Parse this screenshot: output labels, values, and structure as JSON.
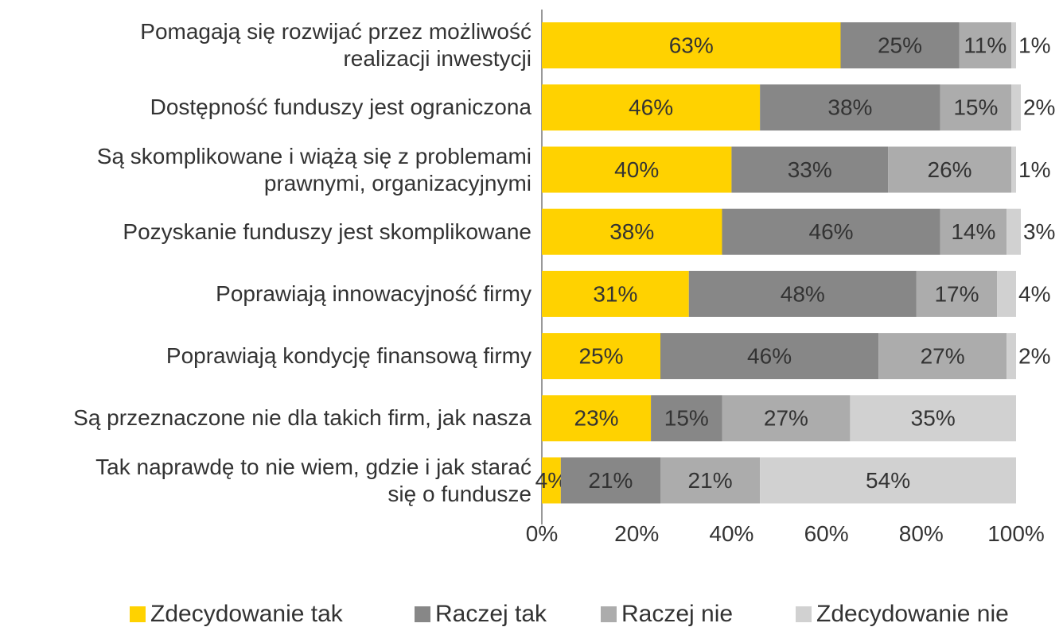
{
  "chart_data": {
    "type": "bar",
    "orientation": "horizontal",
    "stacked": true,
    "categories": [
      "Pomagają się rozwijać przez możliwość\nrealizacji inwestycji",
      "Dostępność funduszy jest ograniczona",
      "Są skomplikowane i wiążą się z problemami\nprawnymi, organizacyjnymi",
      "Pozyskanie funduszy jest skomplikowane",
      "Poprawiają innowacyjność firmy",
      "Poprawiają kondycję finansową firmy",
      "Są przeznaczone nie dla takich firm, jak nasza",
      "Tak naprawdę to nie wiem, gdzie i jak starać\nsię o fundusze"
    ],
    "series": [
      {
        "name": "Zdecydowanie tak",
        "color": "#ffd200",
        "values": [
          63,
          46,
          40,
          38,
          31,
          25,
          23,
          4
        ],
        "value_labels": [
          "63%",
          "46%",
          "40%",
          "38%",
          "31%",
          "25%",
          "23%",
          "4%"
        ]
      },
      {
        "name": "Raczej tak",
        "color": "#878787",
        "values": [
          25,
          38,
          33,
          46,
          48,
          46,
          15,
          21
        ],
        "value_labels": [
          "25%",
          "38%",
          "33%",
          "46%",
          "48%",
          "46%",
          "15%",
          "21%"
        ]
      },
      {
        "name": "Raczej nie",
        "color": "#acacac",
        "values": [
          11,
          15,
          26,
          14,
          17,
          27,
          27,
          21
        ],
        "value_labels": [
          "11%",
          "15%",
          "26%",
          "14%",
          "17%",
          "27%",
          "27%",
          "21%"
        ]
      },
      {
        "name": "Zdecydowanie nie",
        "color": "#d1d1d1",
        "values": [
          1,
          2,
          1,
          3,
          4,
          2,
          35,
          54
        ],
        "value_labels": [
          "1%",
          "2%",
          "1%",
          "3%",
          "4%",
          "2%",
          "35%",
          "54%"
        ]
      }
    ],
    "xlim": [
      0,
      100
    ],
    "xticks": [
      {
        "value": 0,
        "label": "0%"
      },
      {
        "value": 20,
        "label": "20%"
      },
      {
        "value": 40,
        "label": "40%"
      },
      {
        "value": 60,
        "label": "60%"
      },
      {
        "value": 80,
        "label": "80%"
      },
      {
        "value": 100,
        "label": "100%"
      }
    ],
    "grid": false,
    "legend": "bottom"
  }
}
